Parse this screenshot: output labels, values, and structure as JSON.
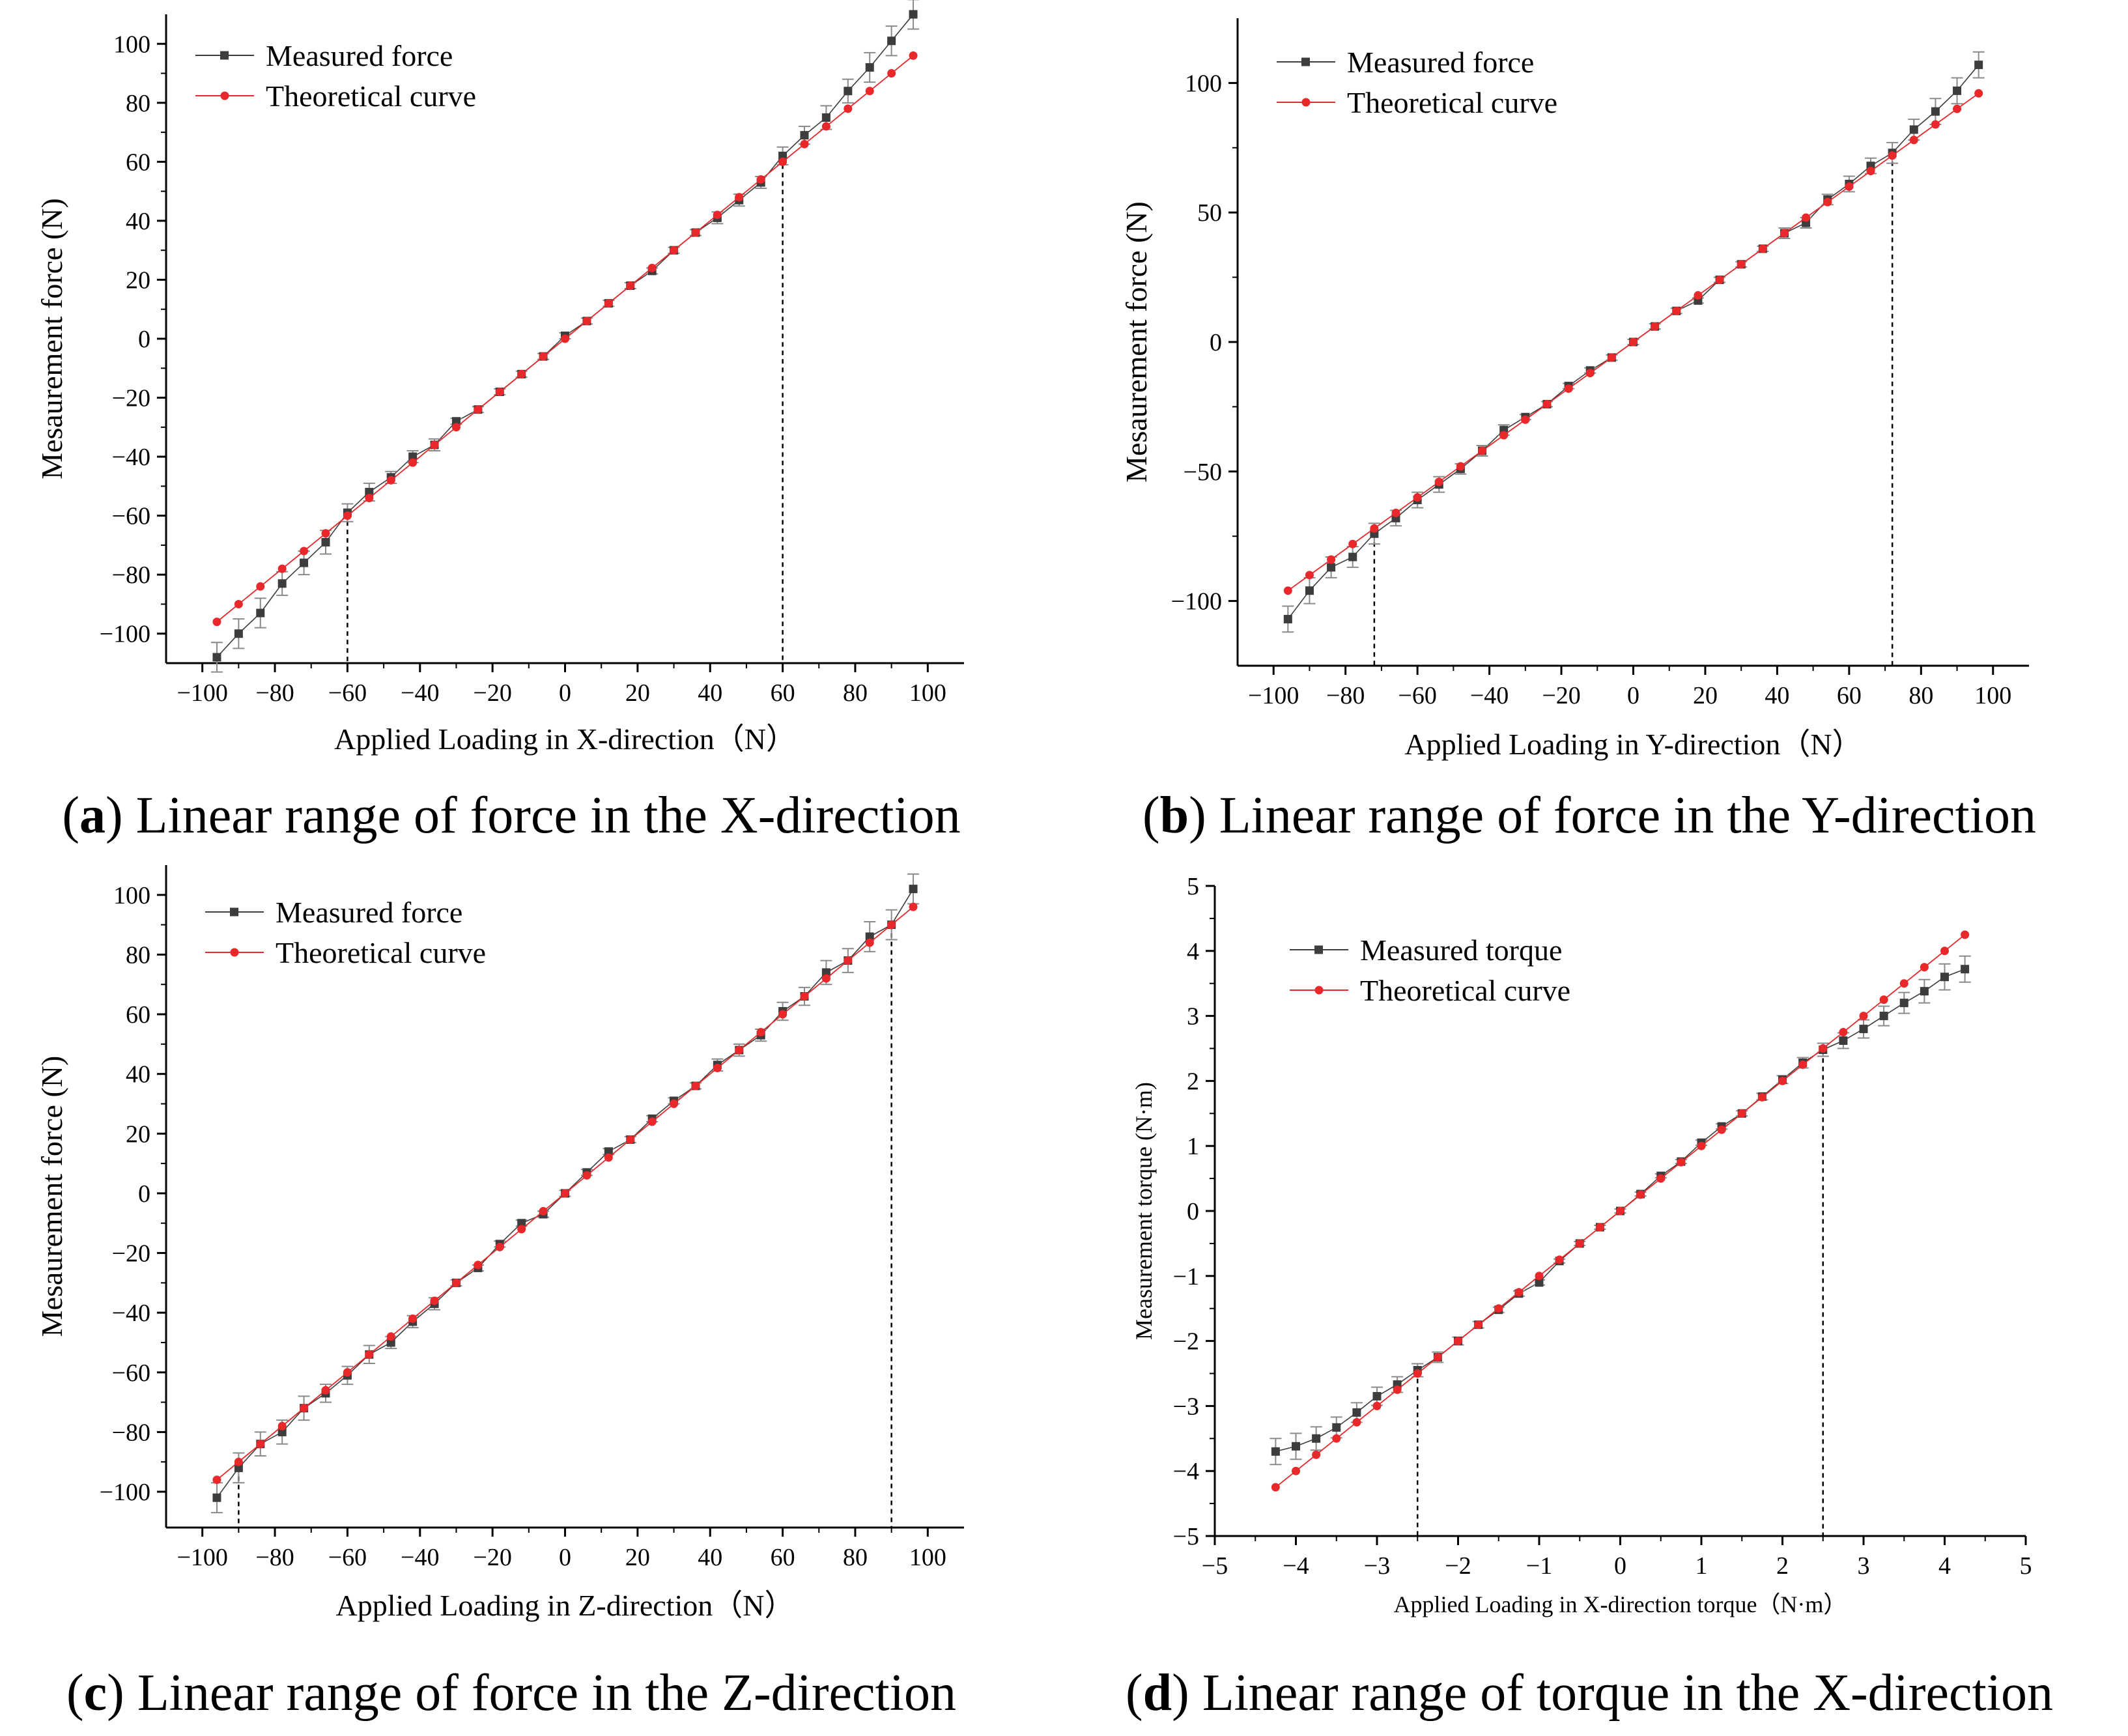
{
  "colors": {
    "measured": "#3d3d3d",
    "theoretical": "#e8282a",
    "axis": "#000000",
    "errorbar": "#8a8a8a"
  },
  "panels": [
    {
      "id": "a",
      "caption_letter": "a",
      "caption_text": " Linear range of force in the X-direction",
      "chart_ref": 0
    },
    {
      "id": "b",
      "caption_letter": "b",
      "caption_text": " Linear range of force in the Y-direction",
      "chart_ref": 1
    },
    {
      "id": "c",
      "caption_letter": "c",
      "caption_text": " Linear range of force in the Z-direction",
      "chart_ref": 2
    },
    {
      "id": "d",
      "caption_letter": "d",
      "caption_text": " Linear range of torque in the X-direction",
      "chart_ref": 3
    }
  ],
  "chart_data": [
    {
      "type": "line",
      "title": "",
      "xlabel": "Applied Loading in X-direction（N）",
      "ylabel": "Mesaurement force (N)",
      "xlim": [
        -110,
        110
      ],
      "ylim": [
        -110,
        110
      ],
      "xticks": [
        -100,
        -80,
        -60,
        -40,
        -20,
        0,
        20,
        40,
        60,
        80,
        100
      ],
      "yticks": [
        -100,
        -80,
        -60,
        -40,
        -20,
        0,
        20,
        40,
        60,
        80,
        100
      ],
      "x": [
        -96,
        -90,
        -84,
        -78,
        -72,
        -66,
        -60,
        -54,
        -48,
        -42,
        -36,
        -30,
        -24,
        -18,
        -12,
        -6,
        0,
        6,
        12,
        18,
        24,
        30,
        36,
        42,
        48,
        54,
        60,
        66,
        72,
        78,
        84,
        90,
        96
      ],
      "series": [
        {
          "name": "Measured force",
          "marker": "square",
          "values": [
            -108,
            -100,
            -93,
            -83,
            -76,
            -69,
            -59,
            -52,
            -47,
            -40,
            -36,
            -28,
            -24,
            -18,
            -12,
            -6,
            1,
            6,
            12,
            18,
            23,
            30,
            36,
            41,
            47,
            53,
            62,
            69,
            75,
            84,
            92,
            101,
            110
          ],
          "errors": [
            5,
            5,
            5,
            4,
            4,
            4,
            3,
            3,
            2,
            2,
            2,
            1,
            1,
            1,
            1,
            1,
            1,
            1,
            1,
            1,
            1,
            1,
            1,
            2,
            2,
            2,
            3,
            3,
            4,
            4,
            5,
            5,
            5
          ]
        },
        {
          "name": "Theoretical curve",
          "marker": "circle",
          "values": [
            -96,
            -90,
            -84,
            -78,
            -72,
            -66,
            -60,
            -54,
            -48,
            -42,
            -36,
            -30,
            -24,
            -18,
            -12,
            -6,
            0,
            6,
            12,
            18,
            24,
            30,
            36,
            42,
            48,
            54,
            60,
            66,
            72,
            78,
            84,
            90,
            96
          ]
        }
      ],
      "linear_limits": [
        -60,
        60
      ]
    },
    {
      "type": "line",
      "title": "",
      "xlabel": "Applied Loading in Y-direction（N）",
      "ylabel": "Mesaurement force (N)",
      "xlim": [
        -110,
        110
      ],
      "ylim": [
        -125,
        125
      ],
      "xticks": [
        -100,
        -80,
        -60,
        -40,
        -20,
        0,
        20,
        40,
        60,
        80,
        100
      ],
      "yticks": [
        -100,
        -50,
        0,
        50,
        100
      ],
      "x": [
        -96,
        -90,
        -84,
        -78,
        -72,
        -66,
        -60,
        -54,
        -48,
        -42,
        -36,
        -30,
        -24,
        -18,
        -12,
        -6,
        0,
        6,
        12,
        18,
        24,
        30,
        36,
        42,
        48,
        54,
        60,
        66,
        72,
        78,
        84,
        90,
        96
      ],
      "series": [
        {
          "name": "Measured force",
          "marker": "square",
          "values": [
            -107,
            -96,
            -87,
            -83,
            -74,
            -68,
            -61,
            -55,
            -49,
            -42,
            -34,
            -29,
            -24,
            -17,
            -11,
            -6,
            0,
            6,
            12,
            16,
            24,
            30,
            36,
            42,
            46,
            55,
            61,
            68,
            73,
            82,
            89,
            97,
            107
          ],
          "errors": [
            5,
            5,
            4,
            4,
            4,
            3,
            3,
            3,
            2,
            2,
            2,
            1,
            1,
            1,
            1,
            1,
            1,
            1,
            1,
            1,
            1,
            1,
            1,
            2,
            2,
            2,
            3,
            3,
            4,
            4,
            5,
            5,
            5
          ]
        },
        {
          "name": "Theoretical curve",
          "marker": "circle",
          "values": [
            -96,
            -90,
            -84,
            -78,
            -72,
            -66,
            -60,
            -54,
            -48,
            -42,
            -36,
            -30,
            -24,
            -18,
            -12,
            -6,
            0,
            6,
            12,
            18,
            24,
            30,
            36,
            42,
            48,
            54,
            60,
            66,
            72,
            78,
            84,
            90,
            96
          ]
        }
      ],
      "linear_limits": [
        -72,
        72
      ]
    },
    {
      "type": "line",
      "title": "",
      "xlabel": "Applied Loading in Z-direction（N）",
      "ylabel": "Mesaurement force (N)",
      "xlim": [
        -110,
        110
      ],
      "ylim": [
        -112,
        110
      ],
      "xticks": [
        -100,
        -80,
        -60,
        -40,
        -20,
        0,
        20,
        40,
        60,
        80,
        100
      ],
      "yticks": [
        -100,
        -80,
        -60,
        -40,
        -20,
        0,
        20,
        40,
        60,
        80,
        100
      ],
      "x": [
        -96,
        -90,
        -84,
        -78,
        -72,
        -66,
        -60,
        -54,
        -48,
        -42,
        -36,
        -30,
        -24,
        -18,
        -12,
        -6,
        0,
        6,
        12,
        18,
        24,
        30,
        36,
        42,
        48,
        54,
        60,
        66,
        72,
        78,
        84,
        90,
        96
      ],
      "series": [
        {
          "name": "Measured force",
          "marker": "square",
          "values": [
            -102,
            -92,
            -84,
            -80,
            -72,
            -67,
            -61,
            -54,
            -50,
            -43,
            -37,
            -30,
            -25,
            -17,
            -10,
            -7,
            0,
            7,
            14,
            18,
            25,
            31,
            36,
            43,
            48,
            53,
            61,
            66,
            74,
            78,
            86,
            90,
            102
          ],
          "errors": [
            5,
            5,
            4,
            4,
            4,
            3,
            3,
            3,
            2,
            2,
            2,
            1,
            1,
            1,
            1,
            1,
            1,
            1,
            1,
            1,
            1,
            1,
            1,
            2,
            2,
            2,
            3,
            3,
            4,
            4,
            5,
            5,
            5
          ]
        },
        {
          "name": "Theoretical curve",
          "marker": "circle",
          "values": [
            -96,
            -90,
            -84,
            -78,
            -72,
            -66,
            -60,
            -54,
            -48,
            -42,
            -36,
            -30,
            -24,
            -18,
            -12,
            -6,
            0,
            6,
            12,
            18,
            24,
            30,
            36,
            42,
            48,
            54,
            60,
            66,
            72,
            78,
            84,
            90,
            96
          ]
        }
      ],
      "linear_limits": [
        -90,
        90
      ]
    },
    {
      "type": "line",
      "title": "",
      "xlabel": "Applied Loading in X-direction torque（N·m）",
      "ylabel": "Measurement torque (N·m)",
      "xlim": [
        -5,
        5
      ],
      "ylim": [
        -5,
        5
      ],
      "xticks": [
        -5,
        -4,
        -3,
        -2,
        -1,
        0,
        1,
        2,
        3,
        4,
        5
      ],
      "yticks": [
        -5,
        -4,
        -3,
        -2,
        -1,
        0,
        1,
        2,
        3,
        4,
        5
      ],
      "x": [
        -4.25,
        -4.0,
        -3.75,
        -3.5,
        -3.25,
        -3.0,
        -2.75,
        -2.5,
        -2.25,
        -2.0,
        -1.75,
        -1.5,
        -1.25,
        -1.0,
        -0.75,
        -0.5,
        -0.25,
        0,
        0.25,
        0.5,
        0.75,
        1.0,
        1.25,
        1.5,
        1.75,
        2.0,
        2.25,
        2.5,
        2.75,
        3.0,
        3.25,
        3.5,
        3.75,
        4.0,
        4.25
      ],
      "series": [
        {
          "name": "Measured torque",
          "marker": "square",
          "values": [
            -3.7,
            -3.62,
            -3.5,
            -3.33,
            -3.1,
            -2.85,
            -2.67,
            -2.45,
            -2.25,
            -2.0,
            -1.75,
            -1.52,
            -1.27,
            -1.1,
            -0.77,
            -0.5,
            -0.25,
            0,
            0.26,
            0.54,
            0.76,
            1.05,
            1.3,
            1.5,
            1.76,
            2.02,
            2.28,
            2.48,
            2.62,
            2.8,
            3.0,
            3.2,
            3.38,
            3.6,
            3.72
          ],
          "errors": [
            0.2,
            0.2,
            0.18,
            0.16,
            0.15,
            0.14,
            0.12,
            0.1,
            0.08,
            0.06,
            0.05,
            0.04,
            0.04,
            0.04,
            0.03,
            0.03,
            0.03,
            0.03,
            0.03,
            0.03,
            0.03,
            0.04,
            0.04,
            0.04,
            0.05,
            0.06,
            0.08,
            0.1,
            0.12,
            0.14,
            0.15,
            0.16,
            0.18,
            0.2,
            0.2
          ]
        },
        {
          "name": "Theoretical curve",
          "marker": "circle",
          "values": [
            -4.25,
            -4.0,
            -3.75,
            -3.5,
            -3.25,
            -3.0,
            -2.75,
            -2.5,
            -2.25,
            -2.0,
            -1.75,
            -1.5,
            -1.25,
            -1.0,
            -0.75,
            -0.5,
            -0.25,
            0,
            0.25,
            0.5,
            0.75,
            1.0,
            1.25,
            1.5,
            1.75,
            2.0,
            2.25,
            2.5,
            2.75,
            3.0,
            3.25,
            3.5,
            3.75,
            4.0,
            4.25
          ]
        }
      ],
      "linear_limits": [
        -2.5,
        2.5
      ]
    }
  ]
}
